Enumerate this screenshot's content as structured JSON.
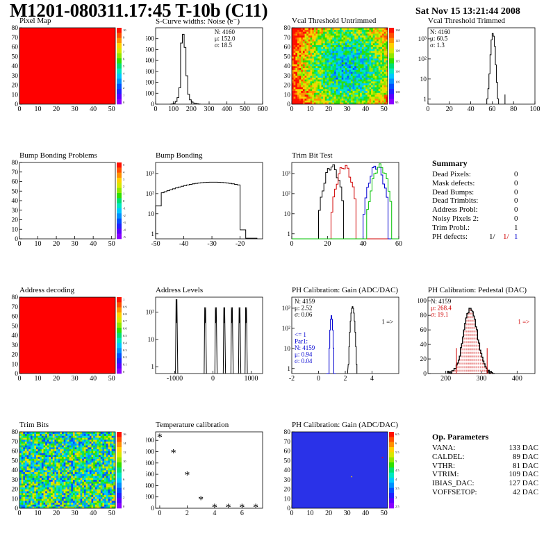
{
  "header": {
    "title": "M1201-080311.17:45 T-10b (C11)",
    "date": "Sat Nov 15 13:21:44 2008"
  },
  "chart_data": [
    {
      "id": "pixelmap",
      "type": "heatmap",
      "title": "Pixel Map",
      "xticks": [
        "0",
        "10",
        "20",
        "30",
        "40",
        "50"
      ],
      "yticks": [
        "0",
        "10",
        "20",
        "30",
        "40",
        "50",
        "60",
        "70",
        "80"
      ],
      "fill": "#ff0000",
      "zticks": [
        "10",
        "9",
        "8",
        "7",
        "6",
        "5",
        "4",
        "3",
        "2",
        "1",
        "0"
      ]
    },
    {
      "id": "scurve",
      "type": "bar",
      "title": "S-Curve widths: Noise (e⁻)",
      "xticks": [
        "0",
        "100",
        "200",
        "300",
        "400",
        "500",
        "600"
      ],
      "yticks": [
        "0",
        "100",
        "200",
        "300",
        "400",
        "500",
        "600"
      ],
      "stats": [
        "N: 4160",
        "μ: 152.0",
        "σ: 18.5"
      ],
      "xlim": [
        0,
        600
      ],
      "ylim": [
        0,
        700
      ],
      "x": [
        80,
        90,
        100,
        110,
        120,
        130,
        140,
        150,
        160,
        170,
        180,
        190,
        200,
        210,
        220,
        230,
        240,
        250
      ],
      "y": [
        0,
        2,
        8,
        25,
        60,
        150,
        560,
        640,
        520,
        260,
        90,
        40,
        20,
        10,
        6,
        3,
        1,
        0
      ]
    },
    {
      "id": "vcal_untrimmed",
      "type": "heatmap",
      "title": "Vcal Threshold Untrimmed",
      "xticks": [
        "0",
        "10",
        "20",
        "30",
        "40",
        "50"
      ],
      "yticks": [
        "0",
        "10",
        "20",
        "30",
        "40",
        "50",
        "60",
        "70",
        "80"
      ],
      "zticks": [
        "130",
        "125",
        "120",
        "115",
        "110",
        "105",
        "100",
        "95"
      ]
    },
    {
      "id": "vcal_trimmed",
      "type": "bar",
      "title": "Vcal Threshold Trimmed",
      "xticks": [
        "0",
        "20",
        "40",
        "60",
        "80",
        "100"
      ],
      "yticks": [
        "1",
        "10",
        "10²",
        "10³"
      ],
      "stats": [
        "N: 4160",
        "μ: 60.5",
        "σ:  1.3"
      ],
      "xlim": [
        0,
        100
      ],
      "log": true,
      "x": [
        55,
        56,
        57,
        58,
        59,
        60,
        61,
        62,
        63,
        64,
        65,
        66
      ],
      "y": [
        1,
        3,
        15,
        120,
        600,
        1200,
        900,
        300,
        40,
        6,
        1,
        0
      ]
    },
    {
      "id": "bump_problems",
      "type": "heatmap",
      "title": "Bump Bonding Problems",
      "xticks": [
        "0",
        "10",
        "20",
        "30",
        "40",
        "50"
      ],
      "yticks": [
        "0",
        "10",
        "20",
        "30",
        "40",
        "50",
        "60",
        "70",
        "80"
      ],
      "zticks": [
        "5",
        "4",
        "3",
        "2",
        "1",
        "0",
        "-1",
        "-2",
        "-3",
        "-4",
        "-5"
      ]
    },
    {
      "id": "bump_bonding",
      "type": "bar",
      "title": "Bump Bonding",
      "xticks": [
        "-50",
        "-40",
        "-30",
        "-20"
      ],
      "yticks": [
        "1",
        "10",
        "10²",
        "10³"
      ],
      "log": true,
      "xlim": [
        -50,
        -12
      ]
    },
    {
      "id": "trimbit",
      "type": "line",
      "title": "Trim Bit Test",
      "xticks": [
        "0",
        "20",
        "40",
        "60"
      ],
      "yticks": [
        "1",
        "10",
        "10²",
        "10³"
      ],
      "log": true,
      "xlim": [
        0,
        60
      ]
    },
    {
      "id": "address_decoding",
      "type": "heatmap",
      "title": "Address decoding",
      "xticks": [
        "0",
        "10",
        "20",
        "30",
        "40",
        "50"
      ],
      "yticks": [
        "0",
        "10",
        "20",
        "30",
        "40",
        "50",
        "60",
        "70",
        "80"
      ],
      "fill": "#ff0000",
      "zticks": [
        "1",
        "0.9",
        "0.8",
        "0.7",
        "0.6",
        "0.5",
        "0.4",
        "0.3",
        "0.2",
        "0.1",
        "0"
      ]
    },
    {
      "id": "address_levels",
      "type": "bar",
      "title": "Address Levels",
      "xticks": [
        "-1000",
        "0",
        "1000"
      ],
      "yticks": [
        "1",
        "10",
        "10²"
      ],
      "log": true,
      "xlim": [
        -1500,
        1300
      ],
      "peaks": [
        -950,
        -200,
        80,
        300,
        500,
        700,
        870
      ]
    },
    {
      "id": "ph_gain",
      "type": "bar",
      "title": "PH Calibration: Gain (ADC/DAC)",
      "xticks": [
        "-2",
        "0",
        "2",
        "4"
      ],
      "yticks": [
        "1",
        "10",
        "10²",
        "10³"
      ],
      "log": true,
      "xlim": [
        -2,
        6
      ],
      "stats": [
        "N: 4159",
        "μ: 2.52",
        "σ: 0.06"
      ],
      "stats2": [
        "<= 1",
        "Par1:",
        "N: 4159",
        "μ: 0.94",
        "σ: 0.04"
      ],
      "arrow": "1 =>"
    },
    {
      "id": "ph_pedestal",
      "type": "bar",
      "title": "PH Calibration: Pedestal (DAC)",
      "xticks": [
        "200",
        "300",
        "400"
      ],
      "yticks": [
        "0",
        "20",
        "40",
        "60",
        "80",
        "100"
      ],
      "xlim": [
        150,
        450
      ],
      "ylim": [
        0,
        105
      ],
      "stats": [
        "N: 4159",
        "μ: 268.4",
        "σ: 19.1"
      ],
      "arrow": "1 =>"
    },
    {
      "id": "trimbits",
      "type": "heatmap",
      "title": "Trim Bits",
      "xticks": [
        "0",
        "10",
        "20",
        "30",
        "40",
        "50"
      ],
      "yticks": [
        "0",
        "10",
        "20",
        "30",
        "40",
        "50",
        "60",
        "70",
        "80"
      ],
      "zticks": [
        "16",
        "14",
        "12",
        "10",
        "8",
        "6",
        "4",
        "2",
        "0"
      ]
    },
    {
      "id": "tempcal",
      "type": "scatter",
      "title": "Temperature calibration",
      "xticks": [
        "0",
        "2",
        "4",
        "6"
      ],
      "yticks": [
        "0",
        "200",
        "400",
        "600",
        "800",
        "1000",
        "1200"
      ],
      "xlim": [
        -0.3,
        7.5
      ],
      "ylim": [
        0,
        1350
      ],
      "x": [
        0,
        1,
        2,
        3,
        4,
        5,
        6,
        7
      ],
      "y": [
        1250,
        975,
        585,
        150,
        15,
        15,
        15,
        15
      ]
    },
    {
      "id": "ph_gain_map",
      "type": "heatmap",
      "title": "PH Calibration: Gain (ADC/DAC)",
      "xticks": [
        "0",
        "10",
        "20",
        "30",
        "40",
        "50"
      ],
      "yticks": [
        "0",
        "10",
        "20",
        "30",
        "40",
        "50",
        "60",
        "70",
        "80"
      ],
      "fill": "#2a32e8",
      "zticks": [
        "6.5",
        "6",
        "5.5",
        "5",
        "4.5",
        "4",
        "3.5",
        "3",
        "2.5"
      ]
    }
  ],
  "summary": {
    "title": "Summary",
    "rows": [
      {
        "label": "Dead Pixels:",
        "value": "0"
      },
      {
        "label": "Mask defects:",
        "value": "0"
      },
      {
        "label": "Dead Bumps:",
        "value": "0"
      },
      {
        "label": "Dead Trimbits:",
        "value": "0"
      },
      {
        "label": "Address Probl:",
        "value": "0"
      },
      {
        "label": "Noisy Pixels 2:",
        "value": "0"
      },
      {
        "label": "Trim Probl.:",
        "value": "1"
      }
    ],
    "ph_label": "PH defects:",
    "ph_values": [
      "1/",
      "1/",
      "1"
    ]
  },
  "params": {
    "title": "Op. Parameters",
    "rows": [
      {
        "label": "VANA:",
        "value": "133 DAC"
      },
      {
        "label": "CALDEL:",
        "value": "89 DAC"
      },
      {
        "label": "VTHR:",
        "value": "81 DAC"
      },
      {
        "label": "VTRIM:",
        "value": "109 DAC"
      },
      {
        "label": "IBIAS_DAC:",
        "value": "127 DAC"
      },
      {
        "label": "VOFFSETOP:",
        "value": "42 DAC"
      }
    ]
  }
}
